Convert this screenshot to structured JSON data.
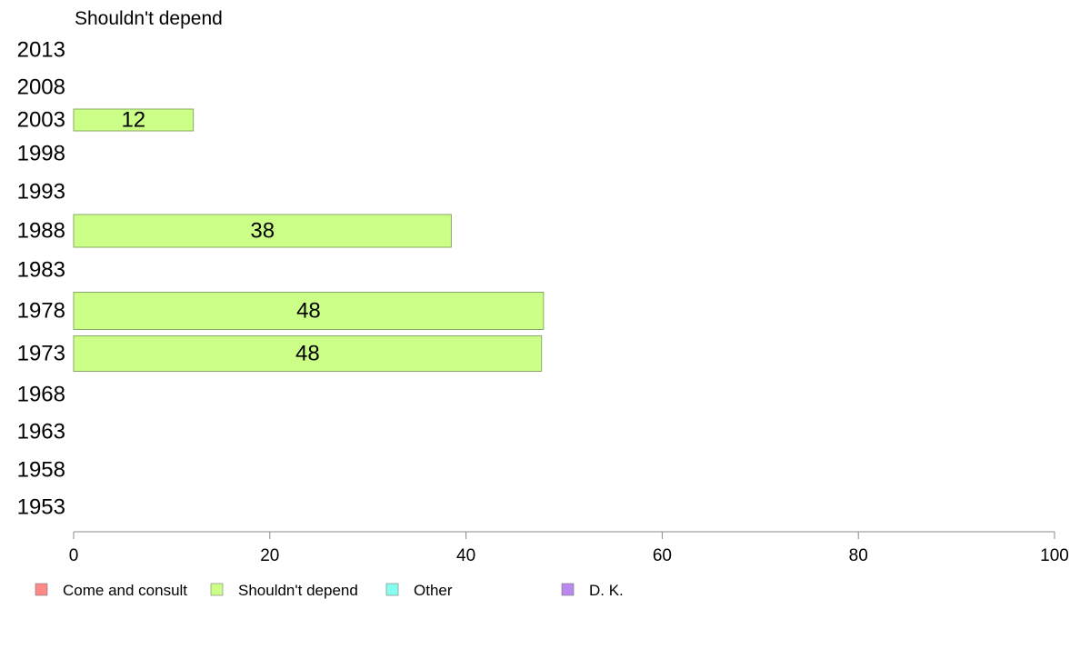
{
  "chart_data": {
    "type": "bar",
    "orientation": "horizontal",
    "title": "Shouldn't depend",
    "categories": [
      "2013",
      "2008",
      "2003",
      "1998",
      "1993",
      "1988",
      "1983",
      "1978",
      "1973",
      "1968",
      "1963",
      "1958",
      "1953"
    ],
    "series": [
      {
        "name": "Shouldn't depend",
        "color": "#ccff88",
        "values": [
          null,
          null,
          12,
          null,
          null,
          38,
          null,
          48,
          48,
          null,
          null,
          null,
          null
        ],
        "exact_values": [
          null,
          null,
          12.2,
          null,
          null,
          38.5,
          null,
          47.9,
          47.7,
          null,
          null,
          null,
          null
        ]
      }
    ],
    "xlim": [
      0,
      100
    ],
    "xticks": [
      0,
      20,
      40,
      60,
      80,
      100
    ],
    "grid": false,
    "legend": {
      "placement": "bottom",
      "items": [
        {
          "label": "Come and consult",
          "color": "#ff8888"
        },
        {
          "label": "Shouldn't depend",
          "color": "#ccff88"
        },
        {
          "label": "Other",
          "color": "#88ffee"
        },
        {
          "label": "D. K.",
          "color": "#bb88ee"
        }
      ]
    }
  }
}
